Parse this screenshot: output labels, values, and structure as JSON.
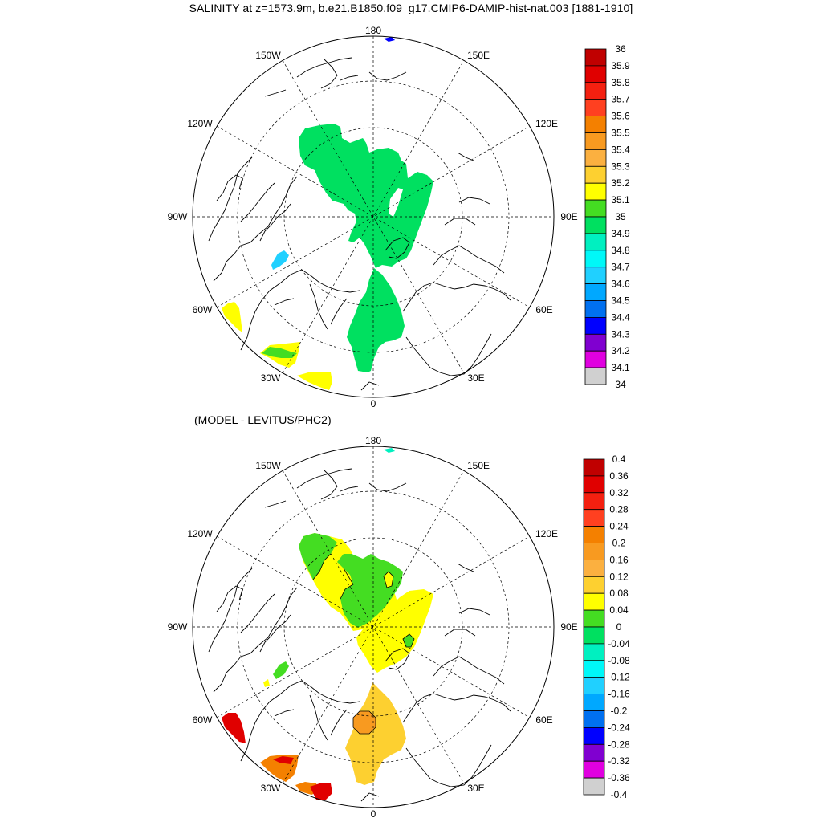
{
  "title": "SALINITY at z=1573.9m, b.e21.B1850.f09_g17.CMIP6-DAMIP-hist-nat.003 [1881-1910]",
  "subtitle": "(MODEL - LEVITUS/PHC2)",
  "map_labels": {
    "lon_180": "180",
    "lon_150w": "150W",
    "lon_150e": "150E",
    "lon_120w": "120W",
    "lon_120e": "120E",
    "lon_90w": "90W",
    "lon_90e": "90E",
    "lon_60w": "60W",
    "lon_60e": "60E",
    "lon_30w": "30W",
    "lon_30e": "30E",
    "lon_0": "0"
  },
  "colorbar_top": {
    "labels": [
      "36",
      "35.9",
      "35.8",
      "35.7",
      "35.6",
      "35.5",
      "35.4",
      "35.3",
      "35.2",
      "35.1",
      "35",
      "34.9",
      "34.8",
      "34.7",
      "34.6",
      "34.5",
      "34.4",
      "34.3",
      "34.2",
      "34.1",
      "34"
    ],
    "colors": [
      "#c00000",
      "#e00000",
      "#f42010",
      "#ff4020",
      "#f48000",
      "#f89a20",
      "#fbb040",
      "#fdd030",
      "#ffff00",
      "#44dd22",
      "#00e060",
      "#00f0c0",
      "#00f8f8",
      "#20d0ff",
      "#00a8ff",
      "#0070f0",
      "#0000ff",
      "#8000d0",
      "#e000e0",
      "#d0d0d0",
      "#707070"
    ]
  },
  "colorbar_bottom": {
    "labels": [
      "0.4",
      "0.36",
      "0.32",
      "0.28",
      "0.24",
      "0.2",
      "0.16",
      "0.12",
      "0.08",
      "0.04",
      "0",
      "-0.04",
      "-0.08",
      "-0.12",
      "-0.16",
      "-0.2",
      "-0.24",
      "-0.28",
      "-0.32",
      "-0.36",
      "-0.4"
    ],
    "colors": [
      "#c00000",
      "#e00000",
      "#f42010",
      "#ff4020",
      "#f48000",
      "#f89a20",
      "#fbb040",
      "#fdd030",
      "#ffff00",
      "#44dd22",
      "#00e060",
      "#00f0c0",
      "#00f8f8",
      "#20d0ff",
      "#00a8ff",
      "#0070f0",
      "#0000ff",
      "#8000d0",
      "#e000e0",
      "#d0d0d0",
      "#707070"
    ]
  },
  "field_colors": {
    "green": "#00e060",
    "cyan": "#20d0ff",
    "blue": "#0000ff",
    "yellow": "#ffff00",
    "lime": "#44dd22",
    "gold": "#fdd030",
    "orange": "#f48000",
    "light_orange": "#f89a20",
    "red": "#e00000",
    "teal": "#00f0c0"
  }
}
